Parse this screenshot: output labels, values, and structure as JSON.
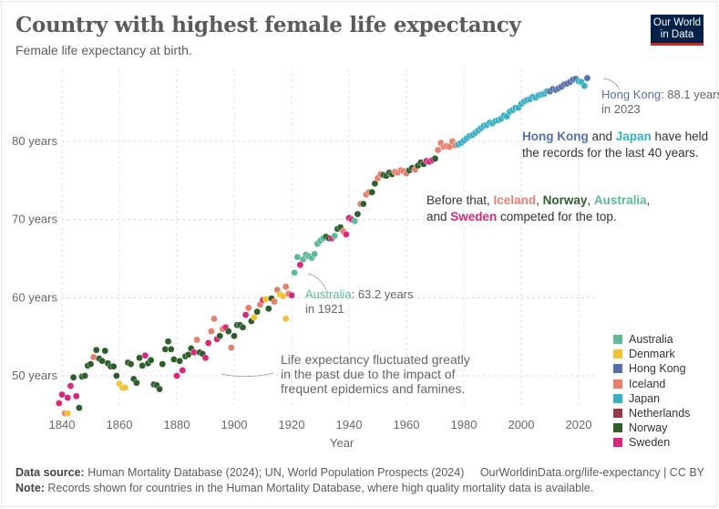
{
  "header": {
    "title": "Country with highest female life expectancy",
    "subtitle": "Female life expectancy at birth.",
    "logo_line1": "Our World",
    "logo_line2": "in Data"
  },
  "colors": {
    "Australia": "#5eb99a",
    "Denmark": "#f2c230",
    "Hong Kong": "#5570a8",
    "Iceland": "#e87f6e",
    "Japan": "#3ab0c0",
    "Netherlands": "#973b4a",
    "Norway": "#2e5e2c",
    "Sweden": "#d8287a"
  },
  "annotations": {
    "hk_country": "Hong Kong",
    "hk_value": ": 88.1 years",
    "hk_year": "in 2023",
    "au_country": "Australia",
    "au_value": ": 63.2 years",
    "au_year": "in 1921",
    "fluct_line1": "Life expectancy fluctuated greatly",
    "fluct_line2": "in the past due to the impact of",
    "fluct_line3": "frequent epidemics and famines.",
    "records_hk": "Hong Kong",
    "records_and": " and ",
    "records_jp": "Japan",
    "records_rest1": " have held",
    "records_line2": "the records for the last 40 years.",
    "before_prefix": "Before that, ",
    "before_iceland": "Iceland",
    "comma1": ", ",
    "before_norway": "Norway",
    "comma2": ", ",
    "before_australia": "Australia",
    "comma3": ",",
    "before_and": "and ",
    "before_sweden": "Sweden",
    "before_suffix": " competed for the top."
  },
  "legend": [
    "Australia",
    "Denmark",
    "Hong Kong",
    "Iceland",
    "Japan",
    "Netherlands",
    "Norway",
    "Sweden"
  ],
  "footer": {
    "source_label": "Data source:",
    "source_text": " Human Mortality Database (2024); UN, World Population Prospects (2024)",
    "url": "OurWorldinData.org/life-expectancy | CC BY",
    "note_label": "Note:",
    "note_text": " Records shown for countries in the Human Mortality Database, where high quality mortality data is available."
  },
  "chart_data": {
    "type": "scatter",
    "title": "Country with highest female life expectancy",
    "subtitle": "Female life expectancy at birth.",
    "xlabel": "Year",
    "ylabel": "",
    "xlim": [
      1838,
      2025
    ],
    "ylim": [
      45,
      89
    ],
    "x_ticks": [
      1840,
      1860,
      1880,
      1900,
      1920,
      1940,
      1960,
      1980,
      2000,
      2020
    ],
    "y_ticks": [
      50,
      60,
      70,
      80
    ],
    "y_tick_labels": [
      "50 years",
      "60 years",
      "70 years",
      "80 years"
    ],
    "grid": true,
    "legend_position": "right",
    "points": [
      {
        "x": 1839,
        "y": 46.5,
        "c": "Sweden"
      },
      {
        "x": 1840,
        "y": 47.6,
        "c": "Sweden"
      },
      {
        "x": 1841,
        "y": 45.2,
        "c": "Iceland"
      },
      {
        "x": 1842,
        "y": 45.2,
        "c": "Denmark"
      },
      {
        "x": 1842,
        "y": 47.2,
        "c": "Sweden"
      },
      {
        "x": 1843,
        "y": 48.7,
        "c": "Sweden"
      },
      {
        "x": 1844,
        "y": 49.8,
        "c": "Norway"
      },
      {
        "x": 1845,
        "y": 47.4,
        "c": "Sweden"
      },
      {
        "x": 1846,
        "y": 45.9,
        "c": "Norway"
      },
      {
        "x": 1847,
        "y": 49.9,
        "c": "Norway"
      },
      {
        "x": 1848,
        "y": 50.0,
        "c": "Norway"
      },
      {
        "x": 1849,
        "y": 51.3,
        "c": "Norway"
      },
      {
        "x": 1850,
        "y": 51.5,
        "c": "Norway"
      },
      {
        "x": 1851,
        "y": 52.4,
        "c": "Iceland"
      },
      {
        "x": 1852,
        "y": 53.3,
        "c": "Norway"
      },
      {
        "x": 1853,
        "y": 52.2,
        "c": "Norway"
      },
      {
        "x": 1854,
        "y": 51.9,
        "c": "Norway"
      },
      {
        "x": 1855,
        "y": 53.2,
        "c": "Norway"
      },
      {
        "x": 1856,
        "y": 51.6,
        "c": "Norway"
      },
      {
        "x": 1857,
        "y": 51.2,
        "c": "Norway"
      },
      {
        "x": 1858,
        "y": 51.2,
        "c": "Norway"
      },
      {
        "x": 1859,
        "y": 50.0,
        "c": "Norway"
      },
      {
        "x": 1860,
        "y": 49.0,
        "c": "Denmark"
      },
      {
        "x": 1861,
        "y": 48.5,
        "c": "Denmark"
      },
      {
        "x": 1862,
        "y": 48.5,
        "c": "Denmark"
      },
      {
        "x": 1863,
        "y": 51.7,
        "c": "Norway"
      },
      {
        "x": 1864,
        "y": 51.5,
        "c": "Norway"
      },
      {
        "x": 1865,
        "y": 49.6,
        "c": "Norway"
      },
      {
        "x": 1866,
        "y": 49.1,
        "c": "Norway"
      },
      {
        "x": 1867,
        "y": 52.3,
        "c": "Norway"
      },
      {
        "x": 1868,
        "y": 51.3,
        "c": "Norway"
      },
      {
        "x": 1869,
        "y": 52.6,
        "c": "Sweden"
      },
      {
        "x": 1870,
        "y": 51.6,
        "c": "Norway"
      },
      {
        "x": 1871,
        "y": 52.0,
        "c": "Norway"
      },
      {
        "x": 1872,
        "y": 48.9,
        "c": "Norway"
      },
      {
        "x": 1873,
        "y": 48.8,
        "c": "Norway"
      },
      {
        "x": 1874,
        "y": 48.3,
        "c": "Norway"
      },
      {
        "x": 1875,
        "y": 51.5,
        "c": "Norway"
      },
      {
        "x": 1876,
        "y": 53.4,
        "c": "Norway"
      },
      {
        "x": 1877,
        "y": 54.4,
        "c": "Norway"
      },
      {
        "x": 1878,
        "y": 53.4,
        "c": "Norway"
      },
      {
        "x": 1879,
        "y": 52.1,
        "c": "Norway"
      },
      {
        "x": 1880,
        "y": 50.0,
        "c": "Sweden"
      },
      {
        "x": 1881,
        "y": 51.9,
        "c": "Norway"
      },
      {
        "x": 1882,
        "y": 50.7,
        "c": "Sweden"
      },
      {
        "x": 1883,
        "y": 52.5,
        "c": "Norway"
      },
      {
        "x": 1884,
        "y": 52.7,
        "c": "Norway"
      },
      {
        "x": 1885,
        "y": 53.5,
        "c": "Norway"
      },
      {
        "x": 1886,
        "y": 53.0,
        "c": "Sweden"
      },
      {
        "x": 1887,
        "y": 54.6,
        "c": "Iceland"
      },
      {
        "x": 1888,
        "y": 53.0,
        "c": "Norway"
      },
      {
        "x": 1889,
        "y": 52.8,
        "c": "Norway"
      },
      {
        "x": 1890,
        "y": 52.3,
        "c": "Sweden"
      },
      {
        "x": 1891,
        "y": 54.2,
        "c": "Sweden"
      },
      {
        "x": 1892,
        "y": 55.7,
        "c": "Iceland"
      },
      {
        "x": 1893,
        "y": 57.3,
        "c": "Iceland"
      },
      {
        "x": 1894,
        "y": 54.7,
        "c": "Sweden"
      },
      {
        "x": 1895,
        "y": 55.1,
        "c": "Norway"
      },
      {
        "x": 1896,
        "y": 56.0,
        "c": "Iceland"
      },
      {
        "x": 1897,
        "y": 56.2,
        "c": "Sweden"
      },
      {
        "x": 1898,
        "y": 55.7,
        "c": "Norway"
      },
      {
        "x": 1899,
        "y": 53.6,
        "c": "Iceland"
      },
      {
        "x": 1900,
        "y": 55.1,
        "c": "Norway"
      },
      {
        "x": 1901,
        "y": 56.5,
        "c": "Norway"
      },
      {
        "x": 1902,
        "y": 56.5,
        "c": "Norway"
      },
      {
        "x": 1903,
        "y": 56.2,
        "c": "Norway"
      },
      {
        "x": 1904,
        "y": 57.8,
        "c": "Sweden"
      },
      {
        "x": 1905,
        "y": 58.7,
        "c": "Iceland"
      },
      {
        "x": 1906,
        "y": 57.0,
        "c": "Norway"
      },
      {
        "x": 1907,
        "y": 57.5,
        "c": "Denmark"
      },
      {
        "x": 1908,
        "y": 58.2,
        "c": "Norway"
      },
      {
        "x": 1909,
        "y": 59.1,
        "c": "Iceland"
      },
      {
        "x": 1910,
        "y": 59.7,
        "c": "Sweden"
      },
      {
        "x": 1911,
        "y": 59.8,
        "c": "Denmark"
      },
      {
        "x": 1912,
        "y": 58.6,
        "c": "Norway"
      },
      {
        "x": 1913,
        "y": 59.9,
        "c": "Norway"
      },
      {
        "x": 1914,
        "y": 59.5,
        "c": "Iceland"
      },
      {
        "x": 1915,
        "y": 61.0,
        "c": "Iceland"
      },
      {
        "x": 1916,
        "y": 60.4,
        "c": "Denmark"
      },
      {
        "x": 1917,
        "y": 60.2,
        "c": "Denmark"
      },
      {
        "x": 1918,
        "y": 57.3,
        "c": "Denmark"
      },
      {
        "x": 1918,
        "y": 61.4,
        "c": "Iceland"
      },
      {
        "x": 1919,
        "y": 60.5,
        "c": "Iceland"
      },
      {
        "x": 1920,
        "y": 60.3,
        "c": "Sweden"
      },
      {
        "x": 1921,
        "y": 63.2,
        "c": "Australia"
      },
      {
        "x": 1922,
        "y": 65.2,
        "c": "Australia"
      },
      {
        "x": 1923,
        "y": 64.2,
        "c": "Sweden"
      },
      {
        "x": 1924,
        "y": 64.9,
        "c": "Australia"
      },
      {
        "x": 1925,
        "y": 65.5,
        "c": "Australia"
      },
      {
        "x": 1926,
        "y": 65.3,
        "c": "Australia"
      },
      {
        "x": 1927,
        "y": 65.1,
        "c": "Australia"
      },
      {
        "x": 1928,
        "y": 65.6,
        "c": "Australia"
      },
      {
        "x": 1929,
        "y": 66.9,
        "c": "Australia"
      },
      {
        "x": 1930,
        "y": 67.3,
        "c": "Australia"
      },
      {
        "x": 1931,
        "y": 67.6,
        "c": "Australia"
      },
      {
        "x": 1932,
        "y": 67.8,
        "c": "Norway"
      },
      {
        "x": 1933,
        "y": 67.6,
        "c": "Norway"
      },
      {
        "x": 1934,
        "y": 67.6,
        "c": "Sweden"
      },
      {
        "x": 1935,
        "y": 67.9,
        "c": "Australia"
      },
      {
        "x": 1936,
        "y": 68.8,
        "c": "Norway"
      },
      {
        "x": 1937,
        "y": 69.0,
        "c": "Norway"
      },
      {
        "x": 1938,
        "y": 68.5,
        "c": "Iceland"
      },
      {
        "x": 1939,
        "y": 68.1,
        "c": "Sweden"
      },
      {
        "x": 1940,
        "y": 70.2,
        "c": "Sweden"
      },
      {
        "x": 1941,
        "y": 70.0,
        "c": "Sweden"
      },
      {
        "x": 1942,
        "y": 69.8,
        "c": "Australia"
      },
      {
        "x": 1943,
        "y": 70.7,
        "c": "Norway"
      },
      {
        "x": 1944,
        "y": 72.0,
        "c": "Iceland"
      },
      {
        "x": 1945,
        "y": 72.0,
        "c": "Norway"
      },
      {
        "x": 1946,
        "y": 73.2,
        "c": "Iceland"
      },
      {
        "x": 1947,
        "y": 73.5,
        "c": "Iceland"
      },
      {
        "x": 1948,
        "y": 73.5,
        "c": "Norway"
      },
      {
        "x": 1949,
        "y": 74.6,
        "c": "Norway"
      },
      {
        "x": 1950,
        "y": 75.3,
        "c": "Iceland"
      },
      {
        "x": 1951,
        "y": 75.8,
        "c": "Iceland"
      },
      {
        "x": 1952,
        "y": 75.7,
        "c": "Norway"
      },
      {
        "x": 1953,
        "y": 75.6,
        "c": "Norway"
      },
      {
        "x": 1954,
        "y": 76.0,
        "c": "Norway"
      },
      {
        "x": 1955,
        "y": 75.8,
        "c": "Norway"
      },
      {
        "x": 1956,
        "y": 76.1,
        "c": "Iceland"
      },
      {
        "x": 1957,
        "y": 76.0,
        "c": "Iceland"
      },
      {
        "x": 1958,
        "y": 76.3,
        "c": "Iceland"
      },
      {
        "x": 1959,
        "y": 76.2,
        "c": "Iceland"
      },
      {
        "x": 1960,
        "y": 75.9,
        "c": "Iceland"
      },
      {
        "x": 1961,
        "y": 76.3,
        "c": "Norway"
      },
      {
        "x": 1962,
        "y": 76.6,
        "c": "Norway"
      },
      {
        "x": 1963,
        "y": 76.4,
        "c": "Iceland"
      },
      {
        "x": 1964,
        "y": 76.9,
        "c": "Norway"
      },
      {
        "x": 1965,
        "y": 77.3,
        "c": "Norway"
      },
      {
        "x": 1966,
        "y": 77.1,
        "c": "Norway"
      },
      {
        "x": 1967,
        "y": 77.5,
        "c": "Sweden"
      },
      {
        "x": 1968,
        "y": 77.4,
        "c": "Sweden"
      },
      {
        "x": 1969,
        "y": 77.6,
        "c": "Sweden"
      },
      {
        "x": 1970,
        "y": 77.8,
        "c": "Norway"
      },
      {
        "x": 1971,
        "y": 78.9,
        "c": "Iceland"
      },
      {
        "x": 1972,
        "y": 79.8,
        "c": "Iceland"
      },
      {
        "x": 1973,
        "y": 79.3,
        "c": "Iceland"
      },
      {
        "x": 1974,
        "y": 79.4,
        "c": "Iceland"
      },
      {
        "x": 1975,
        "y": 79.3,
        "c": "Iceland"
      },
      {
        "x": 1976,
        "y": 80.0,
        "c": "Iceland"
      },
      {
        "x": 1977,
        "y": 79.5,
        "c": "Iceland"
      },
      {
        "x": 1978,
        "y": 79.6,
        "c": "Japan"
      },
      {
        "x": 1979,
        "y": 79.8,
        "c": "Japan"
      },
      {
        "x": 1980,
        "y": 80.1,
        "c": "Japan"
      },
      {
        "x": 1981,
        "y": 80.4,
        "c": "Japan"
      },
      {
        "x": 1982,
        "y": 80.7,
        "c": "Japan"
      },
      {
        "x": 1983,
        "y": 80.8,
        "c": "Japan"
      },
      {
        "x": 1984,
        "y": 81.1,
        "c": "Japan"
      },
      {
        "x": 1985,
        "y": 81.4,
        "c": "Japan"
      },
      {
        "x": 1986,
        "y": 81.7,
        "c": "Japan"
      },
      {
        "x": 1987,
        "y": 82.0,
        "c": "Japan"
      },
      {
        "x": 1988,
        "y": 82.1,
        "c": "Japan"
      },
      {
        "x": 1989,
        "y": 82.4,
        "c": "Japan"
      },
      {
        "x": 1990,
        "y": 82.3,
        "c": "Japan"
      },
      {
        "x": 1991,
        "y": 82.6,
        "c": "Japan"
      },
      {
        "x": 1992,
        "y": 82.7,
        "c": "Japan"
      },
      {
        "x": 1993,
        "y": 82.9,
        "c": "Japan"
      },
      {
        "x": 1994,
        "y": 83.3,
        "c": "Japan"
      },
      {
        "x": 1995,
        "y": 83.2,
        "c": "Japan"
      },
      {
        "x": 1996,
        "y": 83.8,
        "c": "Japan"
      },
      {
        "x": 1997,
        "y": 84.0,
        "c": "Japan"
      },
      {
        "x": 1998,
        "y": 84.3,
        "c": "Japan"
      },
      {
        "x": 1999,
        "y": 84.3,
        "c": "Japan"
      },
      {
        "x": 2000,
        "y": 84.8,
        "c": "Japan"
      },
      {
        "x": 2001,
        "y": 85.1,
        "c": "Japan"
      },
      {
        "x": 2002,
        "y": 85.3,
        "c": "Japan"
      },
      {
        "x": 2003,
        "y": 85.4,
        "c": "Japan"
      },
      {
        "x": 2004,
        "y": 85.7,
        "c": "Japan"
      },
      {
        "x": 2005,
        "y": 85.6,
        "c": "Japan"
      },
      {
        "x": 2006,
        "y": 85.9,
        "c": "Japan"
      },
      {
        "x": 2007,
        "y": 86.0,
        "c": "Japan"
      },
      {
        "x": 2008,
        "y": 86.1,
        "c": "Japan"
      },
      {
        "x": 2009,
        "y": 86.4,
        "c": "Japan"
      },
      {
        "x": 2010,
        "y": 86.4,
        "c": "Hong Kong"
      },
      {
        "x": 2011,
        "y": 86.7,
        "c": "Hong Kong"
      },
      {
        "x": 2012,
        "y": 86.6,
        "c": "Hong Kong"
      },
      {
        "x": 2013,
        "y": 86.8,
        "c": "Hong Kong"
      },
      {
        "x": 2014,
        "y": 87.0,
        "c": "Hong Kong"
      },
      {
        "x": 2015,
        "y": 87.3,
        "c": "Hong Kong"
      },
      {
        "x": 2016,
        "y": 87.4,
        "c": "Hong Kong"
      },
      {
        "x": 2017,
        "y": 87.6,
        "c": "Hong Kong"
      },
      {
        "x": 2018,
        "y": 87.9,
        "c": "Hong Kong"
      },
      {
        "x": 2019,
        "y": 88.0,
        "c": "Hong Kong"
      },
      {
        "x": 2020,
        "y": 87.7,
        "c": "Japan"
      },
      {
        "x": 2021,
        "y": 87.6,
        "c": "Japan"
      },
      {
        "x": 2022,
        "y": 87.1,
        "c": "Japan"
      },
      {
        "x": 2023,
        "y": 88.1,
        "c": "Hong Kong"
      }
    ]
  }
}
